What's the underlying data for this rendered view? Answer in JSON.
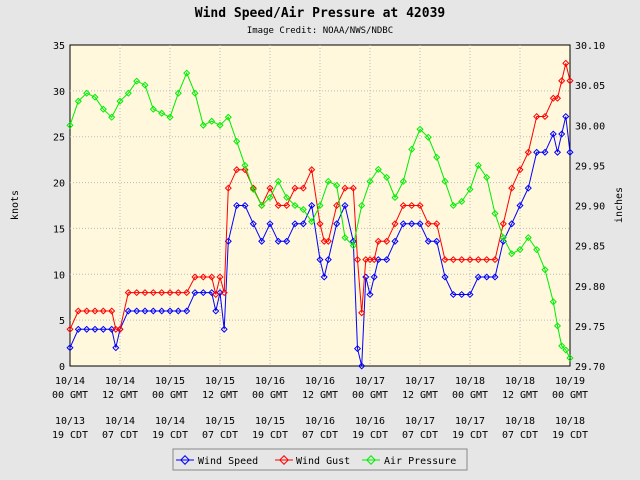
{
  "chart_data": {
    "type": "line",
    "title": "Wind Speed/Air Pressure at 42039",
    "subtitle": "Image Credit: NOAA/NWS/NDBC",
    "ylabel_left": "knots",
    "ylabel_right": "inches",
    "ylim_left": [
      0,
      35
    ],
    "ylim_right": [
      29.7,
      30.1
    ],
    "yticks_left": [
      "0",
      "5",
      "10",
      "15",
      "20",
      "25",
      "30",
      "35"
    ],
    "yticks_right": [
      "29.70",
      "29.75",
      "29.80",
      "29.85",
      "29.90",
      "29.95",
      "30.00",
      "30.05",
      "30.10"
    ],
    "xlim": [
      0,
      120
    ],
    "grid": true,
    "legend_position": "bottom",
    "xticks": [
      {
        "x": 0,
        "gmt": "10/14",
        "gmt_time": "00 GMT",
        "cdt": "10/13",
        "cdt_time": "19 CDT"
      },
      {
        "x": 12,
        "gmt": "10/14",
        "gmt_time": "12 GMT",
        "cdt": "10/14",
        "cdt_time": "07 CDT"
      },
      {
        "x": 24,
        "gmt": "10/15",
        "gmt_time": "00 GMT",
        "cdt": "10/14",
        "cdt_time": "19 CDT"
      },
      {
        "x": 36,
        "gmt": "10/15",
        "gmt_time": "12 GMT",
        "cdt": "10/15",
        "cdt_time": "07 CDT"
      },
      {
        "x": 48,
        "gmt": "10/16",
        "gmt_time": "00 GMT",
        "cdt": "10/15",
        "cdt_time": "19 CDT"
      },
      {
        "x": 60,
        "gmt": "10/16",
        "gmt_time": "12 GMT",
        "cdt": "10/16",
        "cdt_time": "07 CDT"
      },
      {
        "x": 72,
        "gmt": "10/17",
        "gmt_time": "00 GMT",
        "cdt": "10/16",
        "cdt_time": "19 CDT"
      },
      {
        "x": 84,
        "gmt": "10/17",
        "gmt_time": "12 GMT",
        "cdt": "10/17",
        "cdt_time": "07 CDT"
      },
      {
        "x": 96,
        "gmt": "10/18",
        "gmt_time": "00 GMT",
        "cdt": "10/17",
        "cdt_time": "19 CDT"
      },
      {
        "x": 108,
        "gmt": "10/18",
        "gmt_time": "12 GMT",
        "cdt": "10/18",
        "cdt_time": "07 CDT"
      },
      {
        "x": 120,
        "gmt": "10/19",
        "gmt_time": "00 GMT",
        "cdt": "10/18",
        "cdt_time": "19 CDT"
      }
    ],
    "series": [
      {
        "name": "Wind Speed",
        "axis": "left",
        "color": "#0000ff",
        "x": [
          0,
          2,
          4,
          6,
          8,
          10,
          11,
          12,
          14,
          16,
          18,
          20,
          22,
          24,
          26,
          28,
          30,
          32,
          34,
          35,
          36,
          37,
          38,
          40,
          42,
          44,
          46,
          48,
          50,
          52,
          54,
          56,
          58,
          60,
          61,
          62,
          64,
          66,
          68,
          69,
          70,
          71,
          72,
          73,
          74,
          76,
          78,
          80,
          82,
          84,
          86,
          88,
          90,
          92,
          94,
          96,
          98,
          100,
          102,
          104,
          106,
          108,
          110,
          112,
          114,
          116,
          117,
          118,
          119,
          120
        ],
        "y": [
          2,
          4,
          4,
          4,
          4,
          4,
          2,
          4,
          6,
          6,
          6,
          6,
          6,
          6,
          6,
          6,
          8,
          8,
          8,
          6,
          8,
          4,
          13.6,
          17.5,
          17.5,
          15.5,
          13.6,
          15.5,
          13.6,
          13.6,
          15.5,
          15.5,
          17.5,
          11.6,
          9.7,
          11.6,
          15.5,
          17.5,
          13.6,
          1.9,
          0,
          9.7,
          7.8,
          9.7,
          11.6,
          11.6,
          13.6,
          15.5,
          15.5,
          15.5,
          13.6,
          13.6,
          9.7,
          7.8,
          7.8,
          7.8,
          9.7,
          9.7,
          9.7,
          13.6,
          15.5,
          17.5,
          19.4,
          23.3,
          23.3,
          25.3,
          23.3,
          25.3,
          27.2,
          23.3
        ]
      },
      {
        "name": "Wind Gust",
        "axis": "left",
        "color": "#ff0000",
        "x": [
          0,
          2,
          4,
          6,
          8,
          10,
          11,
          12,
          14,
          16,
          18,
          20,
          22,
          24,
          26,
          28,
          30,
          32,
          34,
          35,
          36,
          37,
          38,
          40,
          42,
          44,
          46,
          48,
          50,
          52,
          54,
          56,
          58,
          60,
          61,
          62,
          64,
          66,
          68,
          69,
          70,
          71,
          72,
          73,
          74,
          76,
          78,
          80,
          82,
          84,
          86,
          88,
          90,
          92,
          94,
          96,
          98,
          100,
          102,
          104,
          106,
          108,
          110,
          112,
          114,
          116,
          117,
          118,
          119,
          120
        ],
        "y": [
          4,
          6,
          6,
          6,
          6,
          6,
          4,
          4,
          8,
          8,
          8,
          8,
          8,
          8,
          8,
          8,
          9.7,
          9.7,
          9.7,
          7.8,
          9.7,
          8,
          19.4,
          21.4,
          21.4,
          19.4,
          17.5,
          19.4,
          17.5,
          17.5,
          19.4,
          19.4,
          21.4,
          15.5,
          13.6,
          13.6,
          17.5,
          19.4,
          19.4,
          11.6,
          5.8,
          11.6,
          11.6,
          11.6,
          13.6,
          13.6,
          15.5,
          17.5,
          17.5,
          17.5,
          15.5,
          15.5,
          11.6,
          11.6,
          11.6,
          11.6,
          11.6,
          11.6,
          11.6,
          15.5,
          19.4,
          21.4,
          23.3,
          27.2,
          27.2,
          29.2,
          29.2,
          31.1,
          33,
          31.1
        ]
      },
      {
        "name": "Air Pressure",
        "axis": "right",
        "color": "#00ee00",
        "x": [
          0,
          2,
          4,
          6,
          8,
          10,
          12,
          14,
          16,
          18,
          20,
          22,
          24,
          26,
          28,
          30,
          32,
          34,
          36,
          38,
          40,
          42,
          44,
          46,
          48,
          50,
          52,
          54,
          56,
          58,
          60,
          62,
          64,
          66,
          68,
          70,
          72,
          74,
          76,
          78,
          80,
          82,
          84,
          86,
          88,
          90,
          92,
          94,
          96,
          98,
          100,
          102,
          104,
          106,
          108,
          110,
          112,
          114,
          116,
          117,
          118,
          119,
          120
        ],
        "y": [
          30.0,
          30.03,
          30.04,
          30.035,
          30.02,
          30.01,
          30.03,
          30.04,
          30.055,
          30.05,
          30.02,
          30.015,
          30.01,
          30.04,
          30.065,
          30.04,
          30.0,
          30.005,
          30.0,
          30.01,
          29.98,
          29.95,
          29.92,
          29.9,
          29.91,
          29.93,
          29.91,
          29.9,
          29.895,
          29.88,
          29.9,
          29.93,
          29.925,
          29.86,
          29.85,
          29.9,
          29.93,
          29.945,
          29.935,
          29.91,
          29.93,
          29.97,
          29.995,
          29.985,
          29.96,
          29.93,
          29.9,
          29.905,
          29.92,
          29.95,
          29.935,
          29.89,
          29.86,
          29.84,
          29.845,
          29.86,
          29.845,
          29.82,
          29.78,
          29.75,
          29.725,
          29.72,
          29.71
        ]
      }
    ]
  }
}
